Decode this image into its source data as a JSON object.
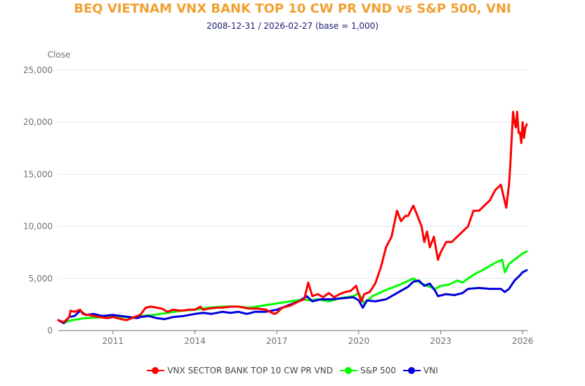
{
  "chart_data": {
    "type": "line",
    "title": "BEQ VIETNAM VNX BANK TOP 10 CW PR VND vs S&P 500, VNI",
    "subtitle": "2008-12-31 / 2026-02-27 (base = 1,000)",
    "ylabel": "Close",
    "xlabel": "",
    "ylim": [
      0,
      25000
    ],
    "xlim": [
      2009.0,
      2026.2
    ],
    "yticks": [
      0,
      5000,
      10000,
      15000,
      20000,
      25000
    ],
    "ytick_labels": [
      "0",
      "5,000",
      "10,000",
      "15,000",
      "20,000",
      "25,000"
    ],
    "xticks": [
      2011,
      2014,
      2017,
      2020,
      2023,
      2026
    ],
    "xtick_labels": [
      "2011",
      "2014",
      "2017",
      "2020",
      "2023",
      "2026"
    ],
    "grid": true,
    "legend_position": "bottom-center",
    "series": [
      {
        "name": "VNX SECTOR BANK TOP 10 CW PR VND",
        "color": "#ff0000",
        "x": [
          2009.0,
          2009.2,
          2009.4,
          2009.45,
          2009.6,
          2009.8,
          2009.9,
          2010.1,
          2010.3,
          2010.5,
          2010.8,
          2011.0,
          2011.3,
          2011.5,
          2011.8,
          2012.0,
          2012.2,
          2012.4,
          2012.6,
          2012.8,
          2013.0,
          2013.2,
          2013.5,
          2013.8,
          2014.0,
          2014.2,
          2014.3,
          2014.5,
          2014.8,
          2015.0,
          2015.3,
          2015.6,
          2015.8,
          2016.0,
          2016.3,
          2016.6,
          2016.9,
          2017.0,
          2017.2,
          2017.5,
          2017.8,
          2018.0,
          2018.15,
          2018.3,
          2018.5,
          2018.7,
          2018.9,
          2019.1,
          2019.3,
          2019.5,
          2019.7,
          2019.9,
          2020.0,
          2020.1,
          2020.2,
          2020.4,
          2020.6,
          2020.8,
          2021.0,
          2021.2,
          2021.4,
          2021.55,
          2021.7,
          2021.8,
          2022.0,
          2022.15,
          2022.3,
          2022.4,
          2022.5,
          2022.6,
          2022.75,
          2022.9,
          2023.0,
          2023.2,
          2023.4,
          2023.6,
          2023.8,
          2024.0,
          2024.2,
          2024.4,
          2024.6,
          2024.8,
          2025.0,
          2025.2,
          2025.4,
          2025.5,
          2025.55,
          2025.65,
          2025.7,
          2025.75,
          2025.8,
          2025.85,
          2025.9,
          2025.95,
          2026.0,
          2026.05,
          2026.1,
          2026.15
        ],
        "values": [
          1000,
          800,
          1300,
          1900,
          1800,
          2000,
          1600,
          1500,
          1400,
          1300,
          1200,
          1300,
          1100,
          1000,
          1300,
          1500,
          2200,
          2300,
          2200,
          2100,
          1800,
          2000,
          1900,
          2000,
          2000,
          2300,
          2000,
          2100,
          2200,
          2200,
          2300,
          2300,
          2200,
          2100,
          2100,
          2000,
          1600,
          1700,
          2200,
          2400,
          2800,
          3000,
          4600,
          3300,
          3500,
          3200,
          3600,
          3200,
          3500,
          3700,
          3800,
          4300,
          3500,
          2800,
          3500,
          3700,
          4500,
          6000,
          8000,
          9000,
          11500,
          10500,
          11000,
          11000,
          12000,
          11000,
          10000,
          8500,
          9500,
          8000,
          9000,
          6800,
          7500,
          8500,
          8500,
          9000,
          9500,
          10000,
          11500,
          11500,
          12000,
          12500,
          13500,
          14000,
          11800,
          14000,
          16000,
          21000,
          20000,
          19500,
          21000,
          19000,
          19000,
          18000,
          20000,
          18500,
          19500,
          19800
        ]
      },
      {
        "name": "S&P 500",
        "color": "#00ff00",
        "x": [
          2009.0,
          2009.2,
          2009.5,
          2010.0,
          2010.5,
          2011.0,
          2011.5,
          2011.8,
          2012.0,
          2012.5,
          2013.0,
          2013.5,
          2014.0,
          2014.5,
          2015.0,
          2015.5,
          2016.0,
          2016.5,
          2017.0,
          2017.5,
          2018.0,
          2018.2,
          2018.5,
          2018.9,
          2019.3,
          2019.8,
          2020.0,
          2020.2,
          2020.5,
          2021.0,
          2021.5,
          2022.0,
          2022.3,
          2022.6,
          2022.8,
          2023.0,
          2023.3,
          2023.6,
          2023.8,
          2024.0,
          2024.3,
          2024.6,
          2025.0,
          2025.25,
          2025.35,
          2025.5,
          2025.8,
          2026.0,
          2026.15
        ],
        "values": [
          1000,
          750,
          1000,
          1200,
          1250,
          1300,
          1300,
          1200,
          1400,
          1500,
          1700,
          1900,
          2000,
          2200,
          2300,
          2300,
          2200,
          2400,
          2600,
          2800,
          3000,
          2900,
          3000,
          2800,
          3100,
          3300,
          3600,
          2600,
          3300,
          3900,
          4400,
          5000,
          4500,
          4200,
          4000,
          4300,
          4400,
          4800,
          4600,
          5000,
          5500,
          5900,
          6500,
          6800,
          5600,
          6400,
          7000,
          7400,
          7600
        ]
      },
      {
        "name": "VNI",
        "color": "#0000dd",
        "x": [
          2009.0,
          2009.2,
          2009.4,
          2009.6,
          2009.8,
          2010.0,
          2010.3,
          2010.6,
          2011.0,
          2011.3,
          2011.6,
          2011.9,
          2012.0,
          2012.3,
          2012.6,
          2012.9,
          2013.2,
          2013.6,
          2014.0,
          2014.3,
          2014.6,
          2015.0,
          2015.3,
          2015.6,
          2015.9,
          2016.2,
          2016.6,
          2017.0,
          2017.4,
          2017.8,
          2018.1,
          2018.3,
          2018.6,
          2019.0,
          2019.4,
          2019.8,
          2020.0,
          2020.15,
          2020.3,
          2020.6,
          2021.0,
          2021.4,
          2021.8,
          2022.0,
          2022.2,
          2022.4,
          2022.6,
          2022.8,
          2022.9,
          2023.2,
          2023.5,
          2023.8,
          2024.0,
          2024.4,
          2024.8,
          2025.2,
          2025.35,
          2025.5,
          2025.7,
          2025.9,
          2026.0,
          2026.15
        ],
        "values": [
          1000,
          700,
          1300,
          1400,
          1900,
          1500,
          1600,
          1400,
          1500,
          1400,
          1300,
          1200,
          1300,
          1400,
          1200,
          1100,
          1300,
          1400,
          1600,
          1700,
          1600,
          1800,
          1700,
          1800,
          1600,
          1800,
          1800,
          2000,
          2400,
          2800,
          3300,
          2800,
          3000,
          3000,
          3100,
          3200,
          2900,
          2200,
          2900,
          2800,
          3000,
          3600,
          4200,
          4700,
          4800,
          4300,
          4500,
          3800,
          3300,
          3500,
          3400,
          3600,
          4000,
          4100,
          4000,
          4000,
          3700,
          4000,
          4800,
          5300,
          5600,
          5800
        ]
      }
    ]
  }
}
